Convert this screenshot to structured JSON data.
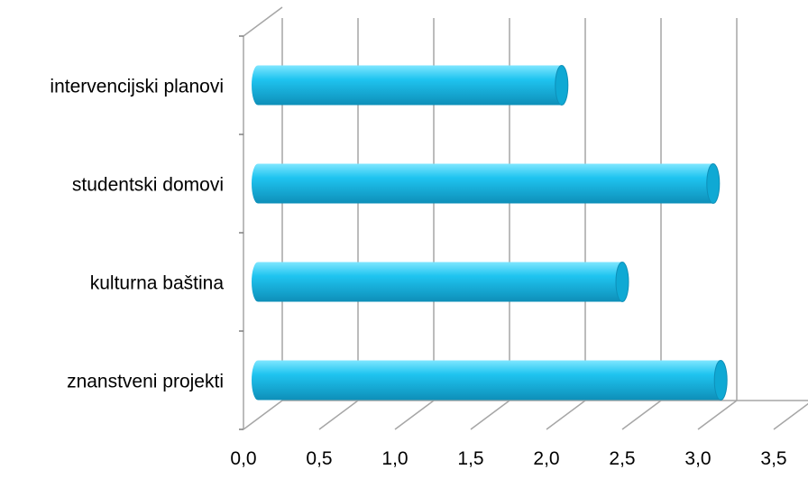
{
  "chart_data": {
    "type": "bar",
    "orientation": "horizontal",
    "style": "3d-cylinder",
    "categories": [
      "znanstveni projekti",
      "kulturna baština",
      "studentski domovi",
      "intervencijski planovi"
    ],
    "values": [
      3.15,
      2.5,
      3.1,
      2.1
    ],
    "x_ticks": [
      "0,0",
      "0,5",
      "1,0",
      "1,5",
      "2,0",
      "2,5",
      "3,0",
      "3,5"
    ],
    "xlim": [
      0,
      3.5
    ],
    "grid": true,
    "legend": "none",
    "colors": {
      "bar_fill_light": "#7FE6FF",
      "bar_fill_mid": "#1FC4F0",
      "bar_fill_dark": "#0E8FB8",
      "bar_end": "#0FA9D4",
      "grid": "#A6A6A6",
      "axis": "#7F7F7F"
    }
  }
}
